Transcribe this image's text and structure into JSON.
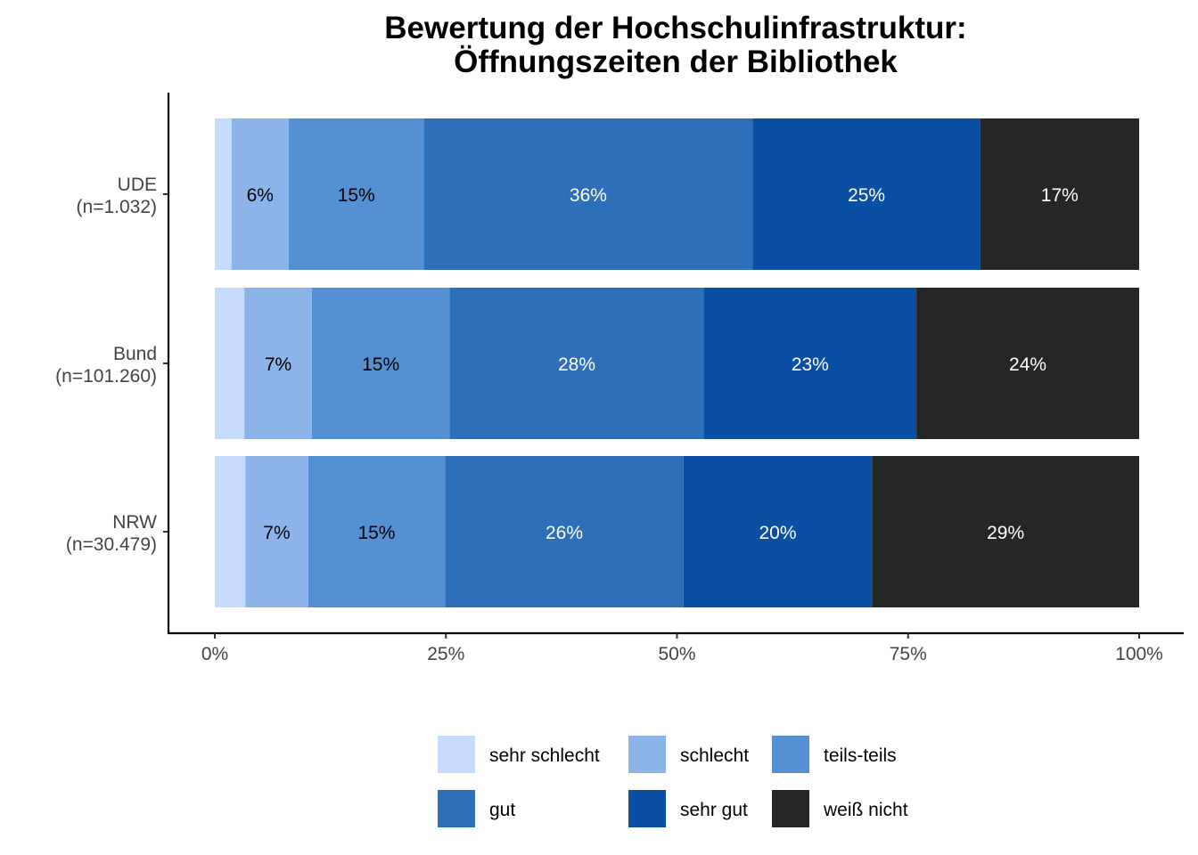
{
  "chart_data": {
    "type": "bar",
    "orientation": "horizontal",
    "stacked": true,
    "title_lines": [
      "Bewertung der Hochschulinfrastruktur:",
      "Öffnungszeiten der Bibliothek"
    ],
    "xlabel": "",
    "ylabel": "",
    "xlim": [
      0,
      100
    ],
    "x_ticks": [
      "0%",
      "25%",
      "50%",
      "75%",
      "100%"
    ],
    "x_tick_values": [
      0,
      25,
      50,
      75,
      100
    ],
    "grid": false,
    "legend_position": "bottom",
    "categories": [
      {
        "name": "UDE",
        "n": "(n=1.032)"
      },
      {
        "name": "Bund",
        "n": "(n=101.260)"
      },
      {
        "name": "NRW",
        "n": "(n=30.479)"
      }
    ],
    "series": [
      {
        "name": "sehr schlecht",
        "color": "#c6dbff",
        "label_color": "#000000",
        "values": [
          1.8,
          3.2,
          3.3
        ],
        "labels": [
          "",
          "",
          ""
        ]
      },
      {
        "name": "schlecht",
        "color": "#8db4e8",
        "label_color": "#000000",
        "values": [
          6.2,
          7.3,
          6.8
        ],
        "labels": [
          "6%",
          "7%",
          "7%"
        ]
      },
      {
        "name": "teils-teils",
        "color": "#5590d2",
        "label_color": "#000000",
        "values": [
          14.6,
          14.9,
          14.8
        ],
        "labels": [
          "15%",
          "15%",
          "15%"
        ]
      },
      {
        "name": "gut",
        "color": "#2d70b9",
        "label_color": "#ffffff",
        "values": [
          35.6,
          27.5,
          25.8
        ],
        "labels": [
          "36%",
          "28%",
          "26%"
        ]
      },
      {
        "name": "sehr gut",
        "color": "#0a4fa3",
        "label_color": "#ffffff",
        "values": [
          24.6,
          23.0,
          20.4
        ],
        "labels": [
          "25%",
          "23%",
          "20%"
        ]
      },
      {
        "name": "weiß nicht",
        "color": "#262626",
        "label_color": "#ffffff",
        "values": [
          17.2,
          24.1,
          28.9
        ],
        "labels": [
          "17%",
          "24%",
          "29%"
        ]
      }
    ]
  }
}
